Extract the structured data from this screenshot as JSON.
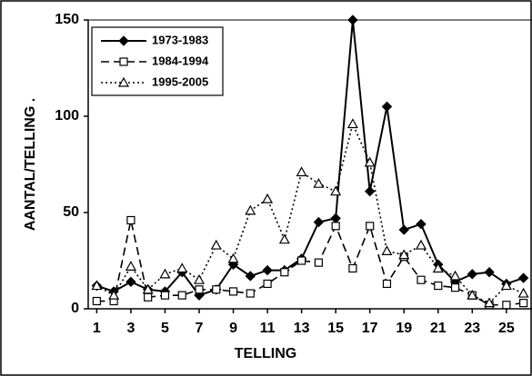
{
  "chart_data": {
    "type": "line",
    "x_label": "TELLING",
    "y_label": "AANTAL/TELLING .",
    "x": [
      1,
      2,
      3,
      4,
      5,
      6,
      7,
      8,
      9,
      10,
      11,
      12,
      13,
      14,
      15,
      16,
      17,
      18,
      19,
      20,
      21,
      22,
      23,
      24,
      25,
      26
    ],
    "xlim": [
      0.5,
      26.5
    ],
    "xticks": [
      1,
      3,
      5,
      7,
      9,
      11,
      13,
      15,
      17,
      19,
      21,
      23,
      25
    ],
    "ylim": [
      0,
      150
    ],
    "yticks": [
      0,
      50,
      100,
      150
    ],
    "legend": "upper left",
    "series": [
      {
        "name": "1973-1983",
        "color": "#000000",
        "style": "solid",
        "marker": "diamond",
        "values": [
          12,
          9,
          14,
          10,
          9,
          19,
          7,
          10,
          23,
          17,
          20,
          20,
          26,
          45,
          47,
          150,
          61,
          105,
          41,
          44,
          23,
          14,
          18,
          19,
          13,
          16
        ]
      },
      {
        "name": "1984-1994",
        "color": "#000000",
        "style": "dashed",
        "marker": "square",
        "values": [
          4,
          4,
          46,
          6,
          7,
          7,
          10,
          10,
          9,
          8,
          13,
          19,
          25,
          24,
          43,
          21,
          43,
          13,
          27,
          15,
          12,
          11,
          7,
          2,
          2,
          3
        ]
      },
      {
        "name": "1995-2005",
        "color": "#000000",
        "style": "dotted",
        "marker": "triangle",
        "values": [
          12,
          7,
          22,
          10,
          18,
          21,
          15,
          33,
          26,
          51,
          57,
          36,
          71,
          65,
          61,
          96,
          76,
          30,
          28,
          33,
          21,
          17,
          7,
          3,
          12,
          8
        ]
      }
    ]
  }
}
